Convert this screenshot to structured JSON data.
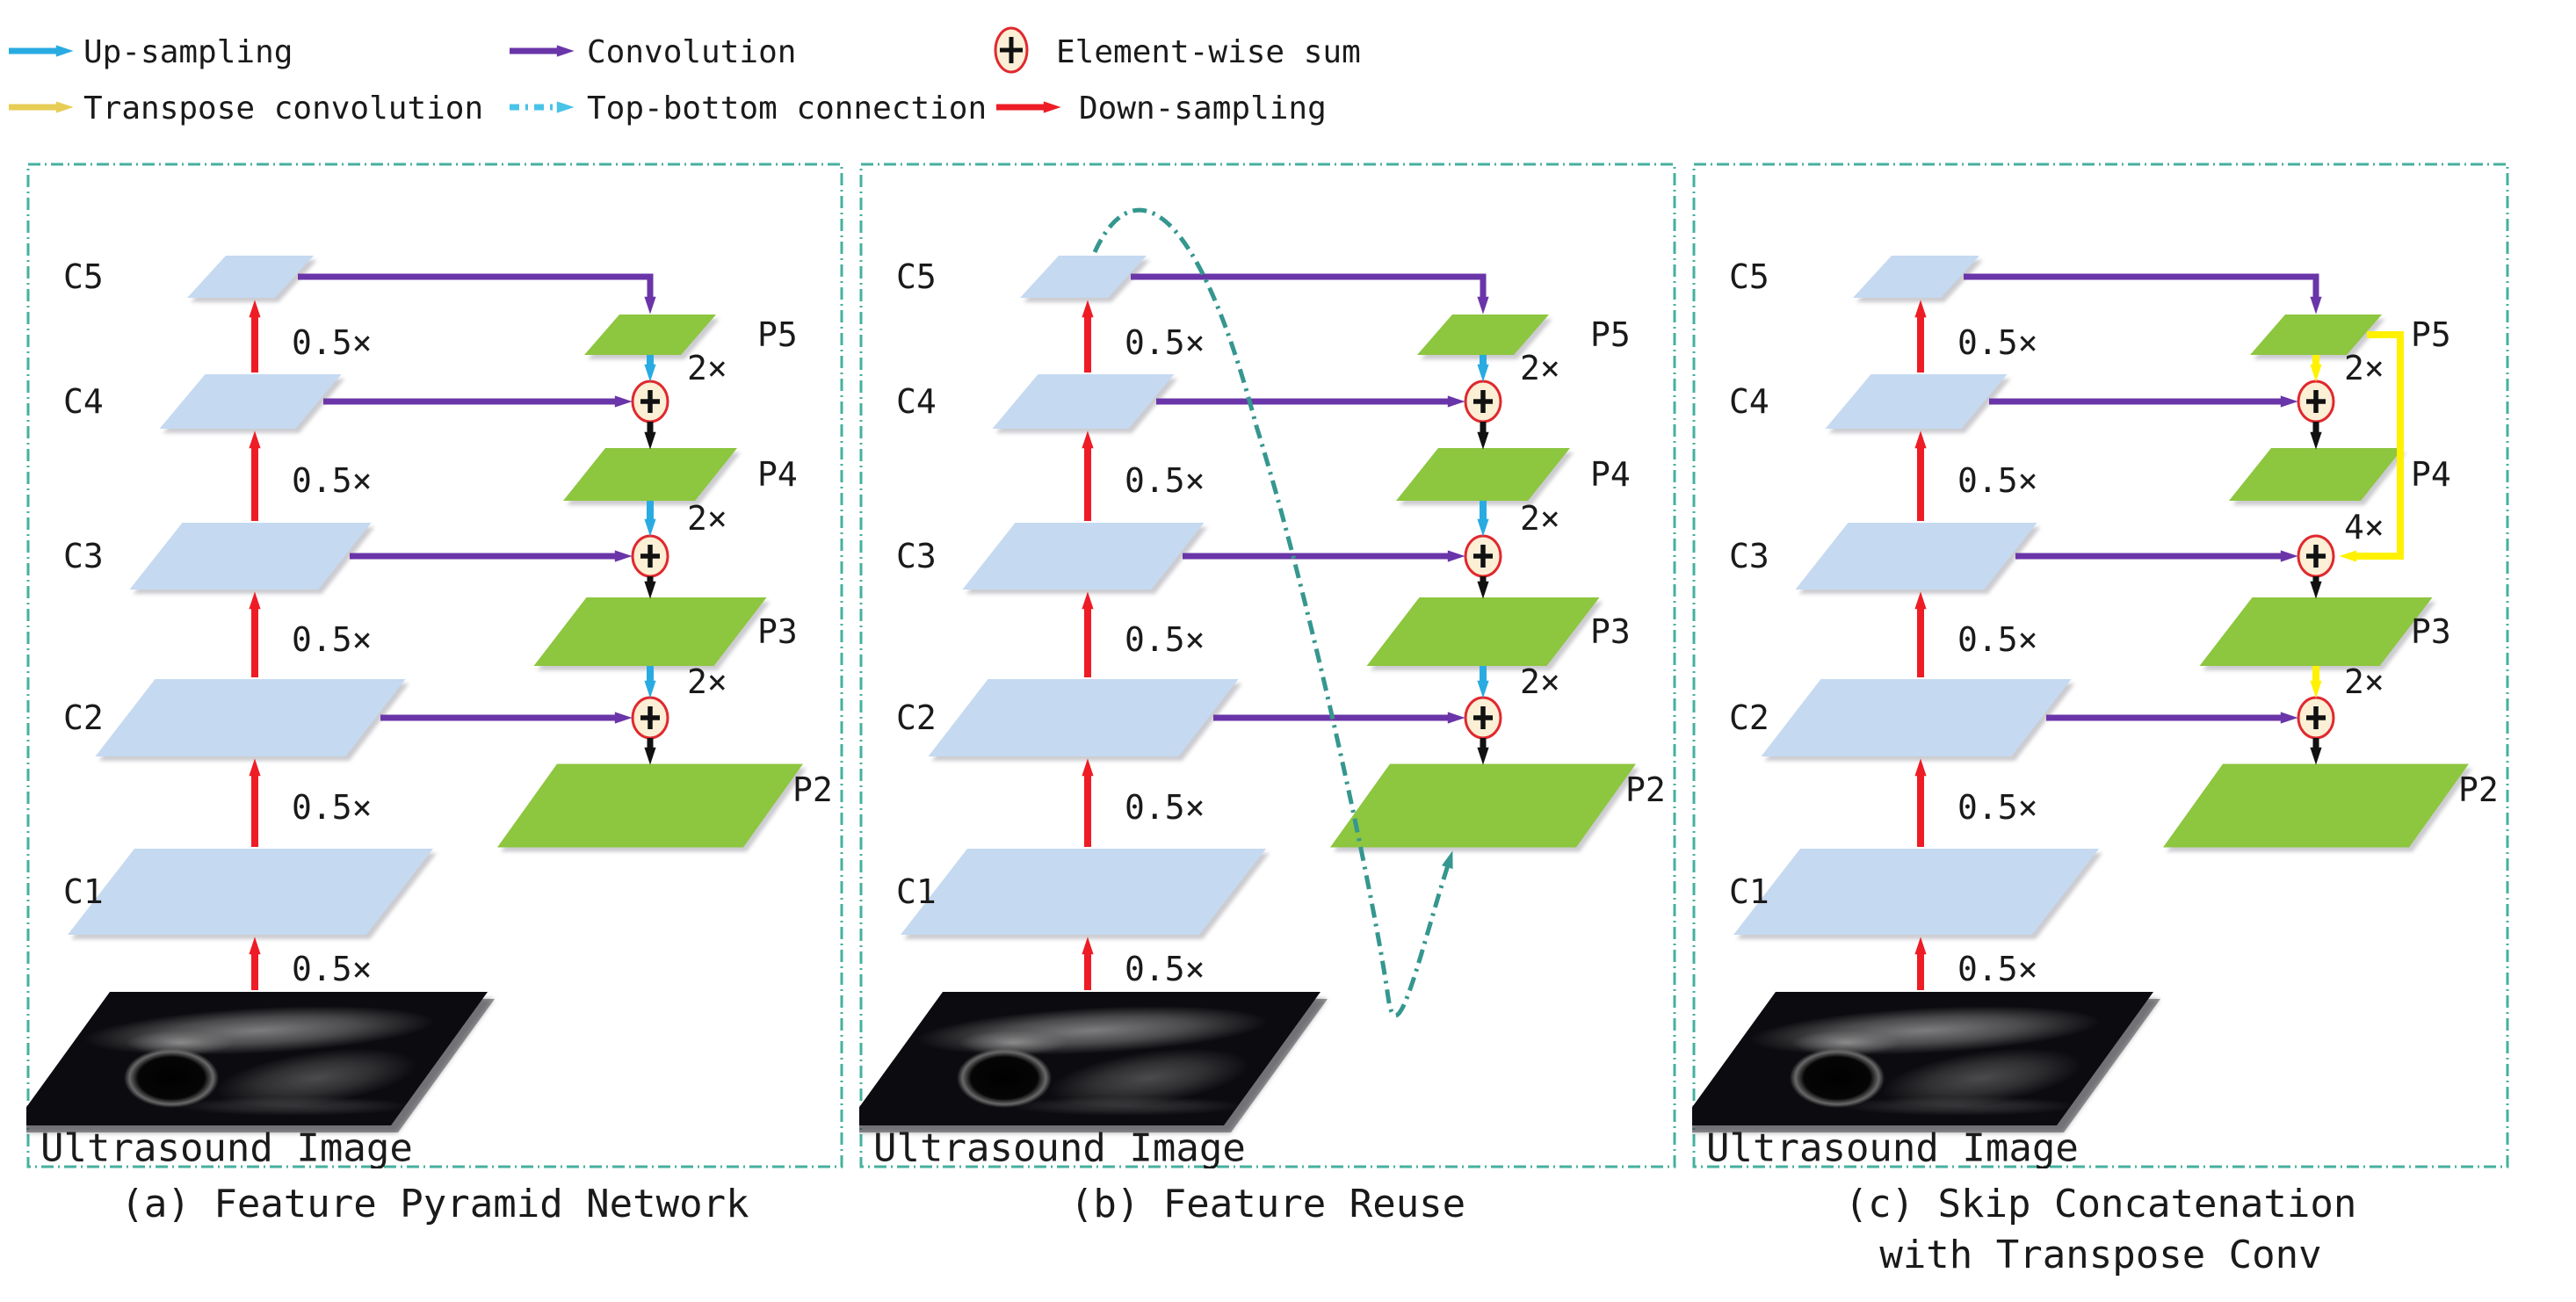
{
  "legend": {
    "items": [
      {
        "id": "up-sampling",
        "label": "Up-sampling"
      },
      {
        "id": "transpose-convolution",
        "label": "Transpose convolution"
      },
      {
        "id": "convolution",
        "label": "Convolution"
      },
      {
        "id": "top-bottom-connection",
        "label": "Top-bottom connection"
      },
      {
        "id": "element-wise-sum",
        "label": "Element-wise sum"
      },
      {
        "id": "down-sampling",
        "label": "Down-sampling"
      }
    ]
  },
  "panels": [
    {
      "variant": "fpn",
      "caption_lines": [
        "(a) Feature Pyramid Network"
      ],
      "image_label": "Ultrasound Image",
      "backbone": [
        {
          "label": "C5",
          "scale_label": "0.5×"
        },
        {
          "label": "C4",
          "scale_label": "0.5×"
        },
        {
          "label": "C3",
          "scale_label": "0.5×"
        },
        {
          "label": "C2",
          "scale_label": "0.5×"
        },
        {
          "label": "C1",
          "scale_label": "0.5×"
        }
      ],
      "pyramid": [
        {
          "label": "P5"
        },
        {
          "label": "P4"
        },
        {
          "label": "P3"
        },
        {
          "label": "P2"
        }
      ],
      "up_arrows": [
        {
          "from": "P5",
          "to": "sum1",
          "label": "2×",
          "style": "up-sampling"
        },
        {
          "from": "P4",
          "to": "sum2",
          "label": "2×",
          "style": "up-sampling"
        },
        {
          "from": "P3",
          "to": "sum3",
          "label": "2×",
          "style": "up-sampling"
        }
      ],
      "top_bottom_connection": false
    },
    {
      "variant": "feature-reuse",
      "caption_lines": [
        "(b) Feature Reuse"
      ],
      "image_label": "Ultrasound Image",
      "backbone": [
        {
          "label": "C5",
          "scale_label": "0.5×"
        },
        {
          "label": "C4",
          "scale_label": "0.5×"
        },
        {
          "label": "C3",
          "scale_label": "0.5×"
        },
        {
          "label": "C2",
          "scale_label": "0.5×"
        },
        {
          "label": "C1",
          "scale_label": "0.5×"
        }
      ],
      "pyramid": [
        {
          "label": "P5"
        },
        {
          "label": "P4"
        },
        {
          "label": "P3"
        },
        {
          "label": "P2"
        }
      ],
      "up_arrows": [
        {
          "from": "P5",
          "to": "sum1",
          "label": "2×",
          "style": "up-sampling"
        },
        {
          "from": "P4",
          "to": "sum2",
          "label": "2×",
          "style": "up-sampling"
        },
        {
          "from": "P3",
          "to": "sum3",
          "label": "2×",
          "style": "up-sampling"
        }
      ],
      "top_bottom_connection": true
    },
    {
      "variant": "skip-concatenation",
      "caption_lines": [
        "(c) Skip Concatenation",
        "with Transpose Conv"
      ],
      "image_label": "Ultrasound Image",
      "backbone": [
        {
          "label": "C5",
          "scale_label": "0.5×"
        },
        {
          "label": "C4",
          "scale_label": "0.5×"
        },
        {
          "label": "C3",
          "scale_label": "0.5×"
        },
        {
          "label": "C2",
          "scale_label": "0.5×"
        },
        {
          "label": "C1",
          "scale_label": "0.5×"
        }
      ],
      "pyramid": [
        {
          "label": "P5"
        },
        {
          "label": "P4"
        },
        {
          "label": "P3"
        },
        {
          "label": "P2"
        }
      ],
      "up_arrows": [
        {
          "from": "P5",
          "to": "sum1",
          "label": "2×",
          "style": "transpose-convolution"
        },
        {
          "from": "P5",
          "to": "sum2",
          "label": "4×",
          "style": "transpose-convolution-skip"
        },
        {
          "from": "P3",
          "to": "sum3",
          "label": "2×",
          "style": "transpose-convolution"
        }
      ],
      "top_bottom_connection": false
    }
  ],
  "colors": {
    "c_block": "#C5D9F1",
    "p_block": "#8DC63F",
    "red": "#EE1C25",
    "purple": "#6A35A8",
    "cyan": "#29ABE2",
    "topbottom_legend": "#49C3E8",
    "yellow_legend": "#E7CD55",
    "yellow": "#FFF100",
    "black": "#111111",
    "teal_curve": "#35978F",
    "panel_border": "#45B09E",
    "sum_fill": "#FBEFD5",
    "sum_ring": "#E0282E",
    "text": "#1A1A1A"
  }
}
